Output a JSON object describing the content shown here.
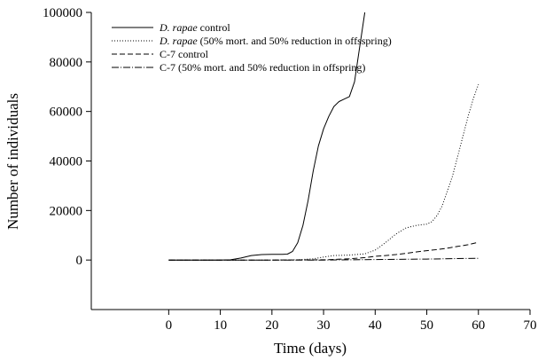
{
  "chart_data": {
    "type": "line",
    "title": "",
    "xlabel": "Time (days)",
    "ylabel": "Number of individuals",
    "xlim": [
      -15,
      70
    ],
    "ylim": [
      -20000,
      100000
    ],
    "xticks": [
      0,
      10,
      20,
      30,
      40,
      50,
      60,
      70
    ],
    "yticks": [
      0,
      20000,
      40000,
      60000,
      80000,
      100000
    ],
    "grid": false,
    "legend_position": "top-left",
    "series": [
      {
        "name_italic": "D. rapae",
        "name_rest": " control",
        "style": "solid",
        "x": [
          0,
          10,
          12,
          14,
          16,
          18,
          20,
          22,
          23,
          24,
          25,
          26,
          27,
          28,
          29,
          30,
          31,
          32,
          33,
          34,
          35,
          36,
          37,
          38
        ],
        "y": [
          0,
          0,
          100,
          800,
          1800,
          2200,
          2300,
          2300,
          2400,
          3500,
          7000,
          14000,
          24000,
          36000,
          46000,
          53000,
          58000,
          62000,
          64000,
          65000,
          66000,
          72000,
          86000,
          100000
        ]
      },
      {
        "name_italic": "D. rapae",
        "name_rest": " (50% mort. and 50% reduction in offsspring)",
        "style": "dotted",
        "x": [
          0,
          20,
          25,
          28,
          30,
          32,
          35,
          38,
          40,
          42,
          44,
          46,
          48,
          50,
          51,
          52,
          53,
          54,
          55,
          56,
          57,
          58,
          59,
          60
        ],
        "y": [
          0,
          0,
          100,
          500,
          1200,
          1800,
          2000,
          2500,
          4000,
          7000,
          10500,
          13000,
          14000,
          14500,
          15500,
          18000,
          22000,
          28000,
          34000,
          42000,
          50000,
          58000,
          65000,
          71000
        ]
      },
      {
        "name_italic": "",
        "name_rest": "C-7 control",
        "style": "dashed",
        "x": [
          0,
          20,
          30,
          35,
          38,
          40,
          42,
          44,
          46,
          48,
          50,
          52,
          54,
          56,
          58,
          60
        ],
        "y": [
          0,
          0,
          100,
          500,
          1000,
          1500,
          1800,
          2200,
          2700,
          3300,
          3800,
          4200,
          4800,
          5500,
          6200,
          7200
        ]
      },
      {
        "name_italic": "",
        "name_rest": "C-7 (50% mort. and 50% reduction in offspring)",
        "style": "dashdot",
        "x": [
          0,
          30,
          40,
          50,
          55,
          60
        ],
        "y": [
          0,
          0,
          200,
          400,
          550,
          700
        ]
      }
    ]
  }
}
